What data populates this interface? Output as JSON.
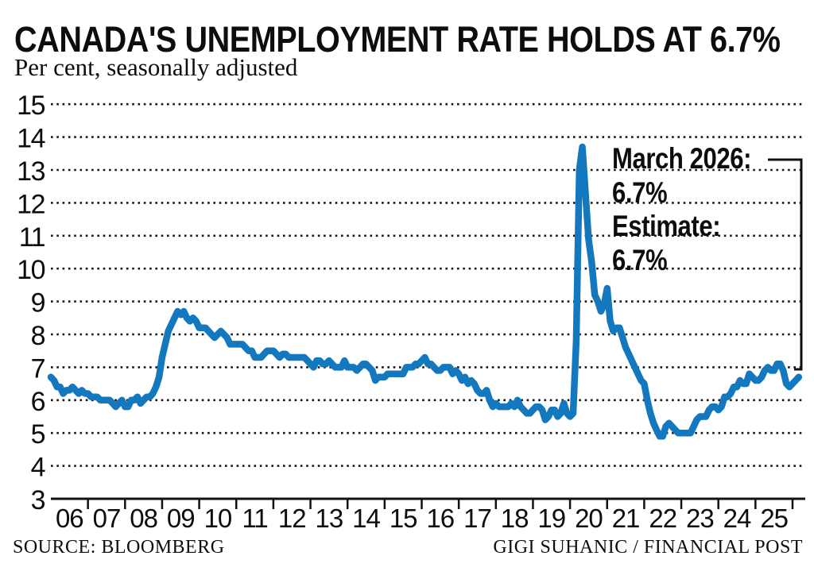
{
  "header": {
    "title": "CANADA'S UNEMPLOYMENT RATE HOLDS AT 6.7%",
    "subtitle": "Per cent, seasonally adjusted"
  },
  "annotation": {
    "lines": [
      "March 2026:",
      "6.7%",
      "Estimate:",
      "6.7%"
    ]
  },
  "footer": {
    "source": "SOURCE: BLOOMBERG",
    "credit": "GIGI SUHANIC / FINANCIAL POST"
  },
  "chart_data": {
    "type": "line",
    "title": "CANADA'S UNEMPLOYMENT RATE HOLDS AT 6.7%",
    "subtitle": "Per cent, seasonally adjusted",
    "ylabel": "Per cent, seasonally adjusted",
    "xlabel": "",
    "frequency": "monthly",
    "x_start": "2006-01",
    "x_end": "2026-03",
    "ylim": [
      3,
      15
    ],
    "y_ticks": [
      3,
      4,
      5,
      6,
      7,
      8,
      9,
      10,
      11,
      12,
      13,
      14,
      15
    ],
    "x_tick_labels": [
      "06",
      "07",
      "08",
      "09",
      "10",
      "11",
      "12",
      "13",
      "14",
      "15",
      "16",
      "17",
      "18",
      "19",
      "20",
      "21",
      "22",
      "23",
      "24",
      "25"
    ],
    "grid": "dotted-horizontal",
    "legend": "none",
    "line_color": "#1478BE",
    "axis_color": "#111111",
    "annotation_callout": "March 2026: 6.7% Estimate: 6.7%",
    "series": [
      {
        "name": "Canada unemployment rate (%)",
        "values": [
          6.7,
          6.6,
          6.4,
          6.4,
          6.2,
          6.3,
          6.3,
          6.4,
          6.3,
          6.2,
          6.3,
          6.2,
          6.2,
          6.1,
          6.1,
          6.1,
          6.0,
          6.0,
          6.0,
          6.0,
          5.9,
          5.8,
          5.9,
          6.0,
          5.8,
          5.8,
          6.0,
          6.0,
          6.1,
          5.9,
          6.0,
          6.1,
          6.1,
          6.2,
          6.4,
          6.7,
          7.3,
          7.7,
          8.1,
          8.3,
          8.5,
          8.7,
          8.6,
          8.7,
          8.5,
          8.4,
          8.5,
          8.4,
          8.2,
          8.2,
          8.2,
          8.1,
          8.0,
          7.9,
          8.0,
          8.1,
          8.0,
          7.9,
          7.7,
          7.7,
          7.7,
          7.7,
          7.7,
          7.6,
          7.5,
          7.5,
          7.3,
          7.3,
          7.3,
          7.4,
          7.5,
          7.5,
          7.5,
          7.4,
          7.3,
          7.4,
          7.4,
          7.3,
          7.3,
          7.3,
          7.3,
          7.3,
          7.3,
          7.2,
          7.1,
          7.0,
          7.2,
          7.2,
          7.1,
          7.1,
          7.2,
          7.1,
          7.0,
          7.0,
          7.0,
          7.2,
          7.0,
          7.0,
          7.0,
          6.9,
          7.0,
          7.1,
          7.1,
          7.0,
          6.9,
          6.6,
          6.7,
          6.7,
          6.7,
          6.8,
          6.8,
          6.8,
          6.8,
          6.8,
          6.8,
          7.0,
          7.0,
          7.0,
          7.1,
          7.1,
          7.2,
          7.3,
          7.1,
          7.1,
          7.0,
          6.9,
          6.9,
          7.0,
          7.0,
          7.0,
          6.8,
          6.9,
          6.8,
          6.6,
          6.7,
          6.5,
          6.6,
          6.5,
          6.3,
          6.2,
          6.2,
          6.3,
          6.0,
          5.8,
          5.9,
          5.8,
          5.8,
          5.8,
          5.8,
          5.9,
          5.8,
          6.0,
          5.8,
          5.7,
          5.6,
          5.6,
          5.7,
          5.8,
          5.8,
          5.7,
          5.4,
          5.5,
          5.7,
          5.7,
          5.5,
          5.6,
          5.9,
          5.6,
          5.5,
          5.6,
          7.8,
          13.0,
          13.7,
          12.3,
          10.9,
          10.2,
          9.2,
          9.0,
          8.7,
          8.9,
          9.4,
          8.4,
          8.1,
          8.2,
          8.2,
          7.9,
          7.6,
          7.4,
          7.2,
          7.0,
          6.8,
          6.6,
          6.5,
          6.0,
          5.6,
          5.3,
          5.1,
          4.9,
          4.9,
          5.2,
          5.3,
          5.2,
          5.1,
          5.0,
          5.0,
          5.0,
          5.0,
          5.0,
          5.2,
          5.4,
          5.5,
          5.5,
          5.5,
          5.7,
          5.8,
          5.8,
          5.7,
          5.8,
          6.1,
          6.1,
          6.2,
          6.4,
          6.4,
          6.6,
          6.5,
          6.5,
          6.8,
          6.7,
          6.6,
          6.6,
          6.7,
          6.9,
          7.0,
          6.9,
          6.9,
          7.1,
          7.1,
          6.9,
          6.5,
          6.4,
          6.5,
          6.6,
          6.7
        ]
      }
    ]
  }
}
